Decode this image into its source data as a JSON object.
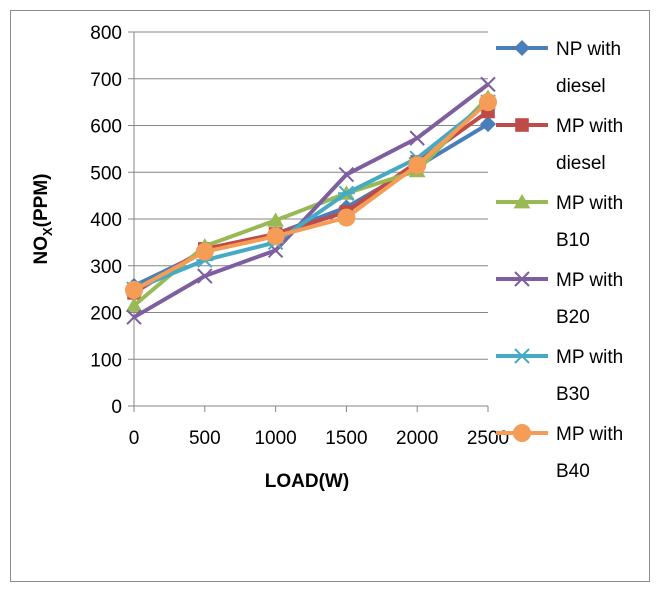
{
  "chart_data": {
    "type": "line",
    "title": "",
    "xlabel": "LOAD(W)",
    "ylabel": "NOX(PPM)",
    "ylabel_parts": {
      "main": "NO",
      "sub": "X",
      "rest": "(PPM)"
    },
    "x": [
      0,
      500,
      1000,
      1500,
      2000,
      2500
    ],
    "x_ticks": [
      "0",
      "500",
      "1000",
      "1500",
      "2000",
      "2500"
    ],
    "y_ticks": [
      "0",
      "100",
      "200",
      "300",
      "400",
      "500",
      "600",
      "700",
      "800"
    ],
    "ylim": [
      0,
      800
    ],
    "grid": "horizontal",
    "legend_position": "right",
    "series": [
      {
        "name": "NP with diesel",
        "name_lines": [
          "NP with",
          "diesel"
        ],
        "color": "#4a7ebb",
        "marker": "diamond",
        "values": [
          257,
          330,
          368,
          425,
          512,
          603
        ]
      },
      {
        "name": "MP with diesel",
        "name_lines": [
          "MP with",
          "diesel"
        ],
        "color": "#be4b48",
        "marker": "square",
        "values": [
          242,
          336,
          368,
          415,
          522,
          630
        ]
      },
      {
        "name": "MP with B10",
        "name_lines": [
          "MP with",
          "B10"
        ],
        "color": "#98b954",
        "marker": "triangle",
        "values": [
          215,
          342,
          397,
          455,
          503,
          660
        ]
      },
      {
        "name": "MP with B20",
        "name_lines": [
          "MP with",
          "B20"
        ],
        "color": "#7d5fa0",
        "marker": "x",
        "values": [
          190,
          278,
          333,
          495,
          573,
          688
        ]
      },
      {
        "name": "MP with B30",
        "name_lines": [
          "MP with",
          "B30"
        ],
        "color": "#46aac5",
        "marker": "star",
        "values": [
          250,
          312,
          350,
          455,
          530,
          650
        ]
      },
      {
        "name": "MP with B40",
        "name_lines": [
          "MP with",
          "B40"
        ],
        "color": "#f59d56",
        "marker": "circle",
        "values": [
          248,
          330,
          363,
          403,
          515,
          650
        ]
      }
    ]
  }
}
